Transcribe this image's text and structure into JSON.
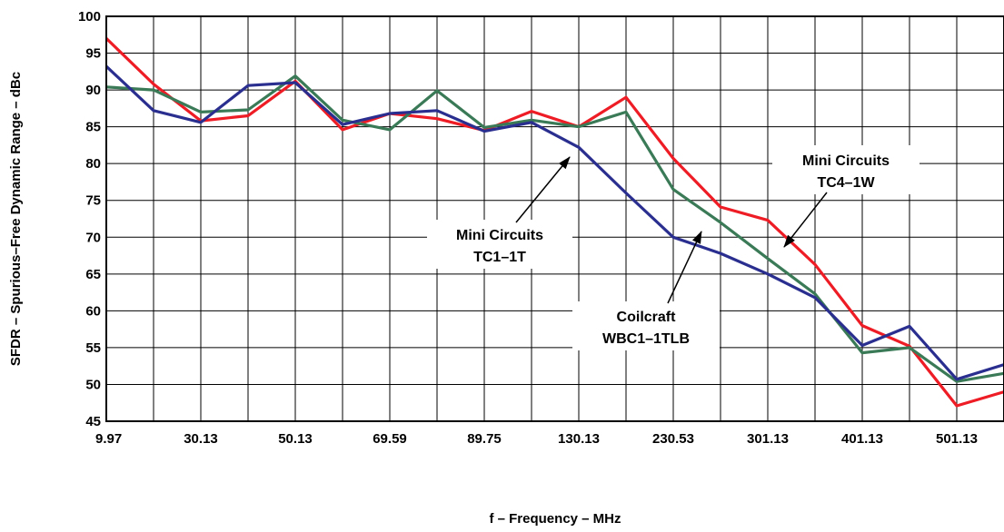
{
  "chart_data": {
    "type": "line",
    "xlabel": "f – Frequency – MHz",
    "ylabel": "SFDR – Spurious–Free Dynamic Range – dBc",
    "ylim": [
      45,
      100
    ],
    "yticks": [
      "100",
      "95",
      "90",
      "85",
      "80",
      "75",
      "70",
      "65",
      "60",
      "55",
      "50",
      "45"
    ],
    "x_tick_labels": [
      "9.97",
      "30.13",
      "50.13",
      "69.59",
      "89.75",
      "130.13",
      "230.53",
      "301.13",
      "401.13",
      "501.13"
    ],
    "grid": true,
    "series": [
      {
        "name": "Mini Circuits TC4–1W",
        "color": "#ee1c25",
        "values": [
          97,
          90.8,
          85.8,
          86.5,
          91.2,
          84.6,
          86.8,
          86.1,
          84.5,
          87.1,
          85.0,
          89.0,
          80.7,
          74.1,
          72.3,
          66.3,
          58.0,
          55.2,
          47.1,
          49.0
        ]
      },
      {
        "name": "Coilcraft WBC1–1TLB",
        "color": "#3b7a57",
        "values": [
          90.4,
          90.0,
          87.0,
          87.3,
          91.9,
          85.9,
          84.6,
          89.9,
          84.9,
          85.9,
          85.0,
          87.0,
          76.5,
          72.0,
          67.1,
          62.3,
          54.3,
          55.0,
          50.4,
          51.5
        ]
      },
      {
        "name": "Mini Circuits TC1–1T",
        "color": "#2a2f8f",
        "values": [
          93.2,
          87.2,
          85.6,
          90.6,
          91.0,
          85.3,
          86.8,
          87.2,
          84.4,
          85.6,
          82.2,
          76.0,
          70.0,
          67.8,
          65.0,
          61.8,
          55.3,
          57.9,
          50.7,
          52.7
        ]
      }
    ],
    "annotations": [
      {
        "lines": [
          "Mini Circuits",
          "TC4–1W"
        ],
        "series": "Mini Circuits TC4–1W"
      },
      {
        "lines": [
          "Mini Circuits",
          "TC1–1T"
        ],
        "series": "Mini Circuits TC1–1T"
      },
      {
        "lines": [
          "Coilcraft",
          "WBC1–1TLB"
        ],
        "series": "Coilcraft WBC1–1TLB"
      }
    ]
  }
}
